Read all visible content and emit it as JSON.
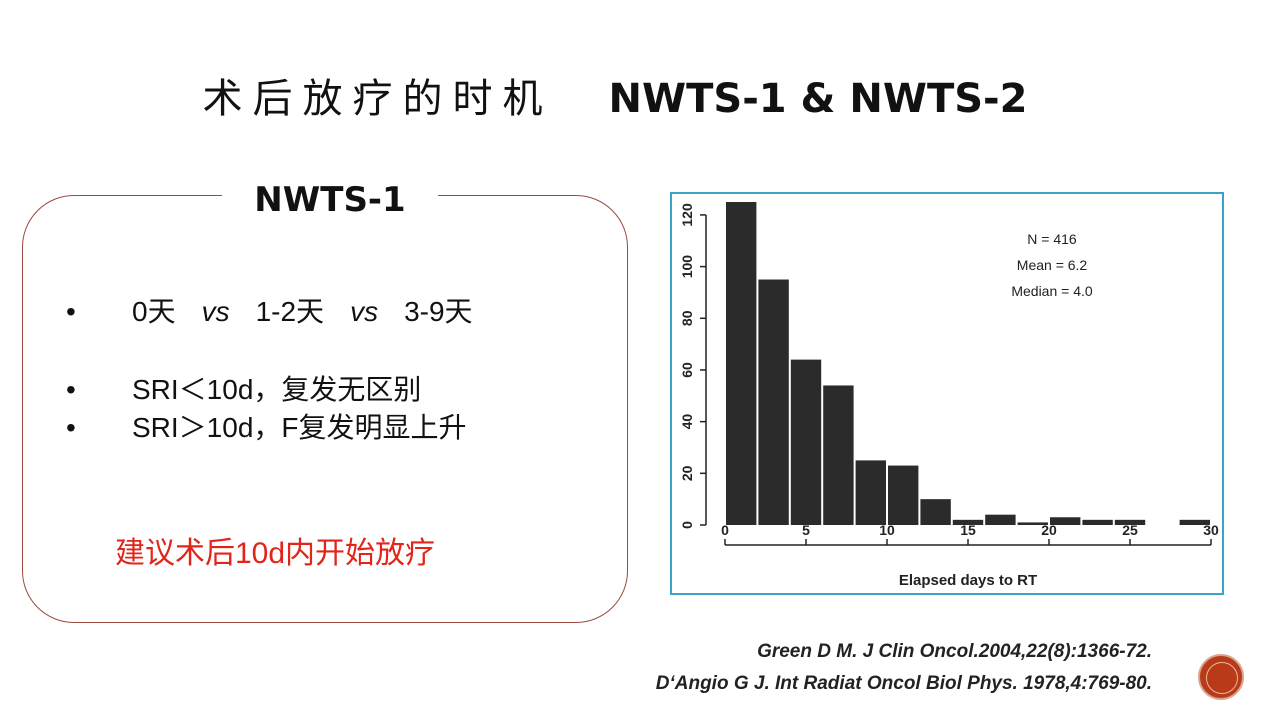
{
  "slide": {
    "title_cn": "术后放疗的时机",
    "title_en": "NWTS-1 & NWTS-2"
  },
  "box": {
    "title": "NWTS-1",
    "bullets": [
      {
        "dot": "•",
        "t1": "0天",
        "vs1": "vs",
        "t2": "1-2天",
        "vs2": "vs",
        "t3": "3-9天"
      },
      {
        "dot": "•",
        "text": "SRI＜10d，复发无区别"
      },
      {
        "dot": "•",
        "text": "SRI＞10d，F复发明显上升"
      }
    ],
    "highlight": "建议术后10d内开始放疗"
  },
  "references": [
    "Green D M. J Clin Oncol.2004,22(8):1366-72.",
    "D‘Angio G J. Int Radiat Oncol Biol Phys. 1978,4:769-80."
  ],
  "chart_data": {
    "type": "bar",
    "title": "",
    "xlabel": "Elapsed days to RT",
    "ylabel": "",
    "xlim": [
      0,
      30
    ],
    "ylim": [
      0,
      125
    ],
    "xticks": [
      0,
      5,
      10,
      15,
      20,
      25,
      30
    ],
    "yticks": [
      0,
      20,
      40,
      60,
      80,
      100,
      120
    ],
    "bin_width": 2,
    "bin_starts": [
      0,
      2,
      4,
      6,
      8,
      10,
      12,
      14,
      16,
      18,
      20,
      22,
      24,
      26,
      28
    ],
    "values": [
      125,
      95,
      64,
      54,
      25,
      23,
      10,
      2,
      4,
      1,
      3,
      2,
      2,
      0,
      2
    ],
    "annotations": [
      "N = 416",
      "Mean = 6.2",
      "Median = 4.0"
    ],
    "bar_color": "#2b2b2b"
  }
}
